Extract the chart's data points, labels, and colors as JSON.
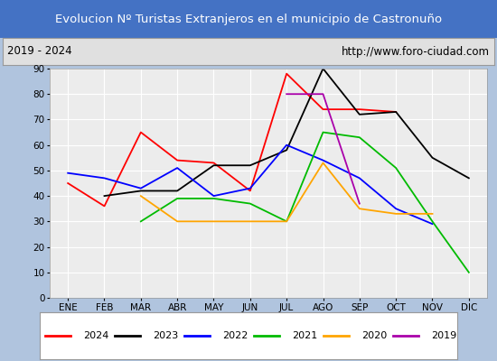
{
  "title": "Evolucion Nº Turistas Extranjeros en el municipio de Castronuño",
  "subtitle_left": "2019 - 2024",
  "subtitle_right": "http://www.foro-ciudad.com",
  "title_bg_color": "#4472c4",
  "title_text_color": "#ffffff",
  "subtitle_bg_color": "#e0e0e0",
  "plot_bg_color": "#ececec",
  "outer_bg_color": "#b0c4de",
  "months": [
    "ENE",
    "FEB",
    "MAR",
    "ABR",
    "MAY",
    "JUN",
    "JUL",
    "AGO",
    "SEP",
    "OCT",
    "NOV",
    "DIC"
  ],
  "ylim": [
    0,
    90
  ],
  "yticks": [
    0,
    10,
    20,
    30,
    40,
    50,
    60,
    70,
    80,
    90
  ],
  "series": {
    "2024": {
      "color": "#ff0000",
      "values": [
        45,
        36,
        65,
        54,
        53,
        42,
        88,
        74,
        74,
        73,
        null,
        null
      ]
    },
    "2023": {
      "color": "#000000",
      "values": [
        null,
        40,
        42,
        42,
        52,
        52,
        58,
        90,
        72,
        73,
        55,
        47
      ]
    },
    "2022": {
      "color": "#0000ff",
      "values": [
        49,
        47,
        43,
        51,
        40,
        43,
        60,
        54,
        47,
        35,
        29,
        null
      ]
    },
    "2021": {
      "color": "#00bb00",
      "values": [
        null,
        null,
        30,
        39,
        39,
        37,
        30,
        65,
        63,
        51,
        30,
        10
      ]
    },
    "2020": {
      "color": "#ffa500",
      "values": [
        null,
        null,
        40,
        30,
        null,
        30,
        30,
        53,
        35,
        33,
        33,
        null
      ]
    },
    "2019": {
      "color": "#aa00aa",
      "values": [
        null,
        null,
        null,
        null,
        null,
        null,
        80,
        80,
        37,
        null,
        null,
        null
      ]
    }
  },
  "legend_order": [
    "2024",
    "2023",
    "2022",
    "2021",
    "2020",
    "2019"
  ]
}
